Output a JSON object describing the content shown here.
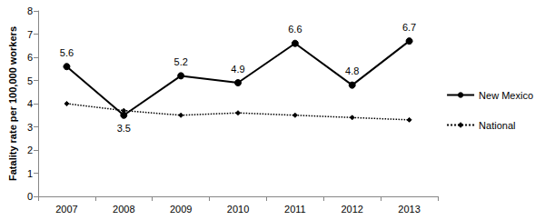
{
  "chart_data": {
    "type": "line",
    "y_label": "Fatality rate per 100,000 workers",
    "categories": [
      "2007",
      "2008",
      "2009",
      "2010",
      "2011",
      "2012",
      "2013"
    ],
    "series": [
      {
        "name": "New Mexico",
        "color": "#000000",
        "marker": "circle",
        "line_style": "solid",
        "data_labels": true,
        "values": [
          5.6,
          3.5,
          5.2,
          4.9,
          6.6,
          4.8,
          6.7
        ]
      },
      {
        "name": "National",
        "color": "#000000",
        "marker": "diamond",
        "line_style": "dotted",
        "values": [
          4.0,
          3.7,
          3.5,
          3.6,
          3.5,
          3.4,
          3.3
        ]
      }
    ],
    "ylim": [
      0,
      8
    ],
    "yticks": [
      0,
      1,
      2,
      3,
      4,
      5,
      6,
      7,
      8
    ],
    "grid": false,
    "legend": "right"
  }
}
